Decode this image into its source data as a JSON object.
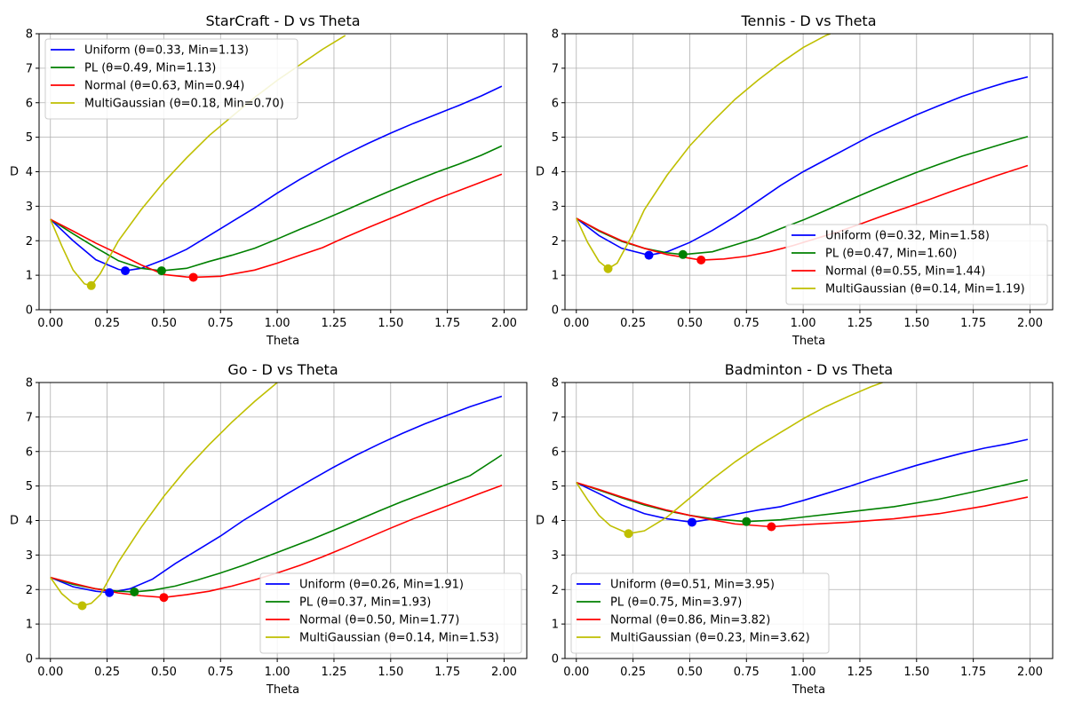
{
  "chart_data": [
    {
      "type": "line",
      "title": "StarCraft - D vs Theta",
      "xlabel": "Theta",
      "ylabel": "D",
      "xlim": [
        -0.05,
        2.1
      ],
      "ylim": [
        0,
        8
      ],
      "xticks": [
        "0.00",
        "0.25",
        "0.50",
        "0.75",
        "1.00",
        "1.25",
        "1.50",
        "1.75",
        "2.00"
      ],
      "yticks": [
        "0",
        "1",
        "2",
        "3",
        "4",
        "5",
        "6",
        "7",
        "8"
      ],
      "grid": true,
      "legend_position": "upper-left",
      "series": [
        {
          "name": "Uniform (θ=0.33, Min=1.13)",
          "color": "#0000ff",
          "x": [
            0,
            0.1,
            0.2,
            0.3,
            0.33,
            0.4,
            0.5,
            0.6,
            0.7,
            0.8,
            0.9,
            1.0,
            1.1,
            1.2,
            1.3,
            1.4,
            1.5,
            1.6,
            1.7,
            1.8,
            1.9,
            1.99
          ],
          "y": [
            2.62,
            2.0,
            1.45,
            1.17,
            1.13,
            1.2,
            1.45,
            1.75,
            2.15,
            2.55,
            2.95,
            3.38,
            3.78,
            4.15,
            4.5,
            4.82,
            5.12,
            5.4,
            5.66,
            5.92,
            6.2,
            6.48
          ],
          "min": {
            "x": 0.33,
            "y": 1.13
          }
        },
        {
          "name": "PL (θ=0.49, Min=1.13)",
          "color": "#008000",
          "x": [
            0,
            0.1,
            0.2,
            0.3,
            0.4,
            0.49,
            0.6,
            0.7,
            0.8,
            0.9,
            1.0,
            1.1,
            1.2,
            1.3,
            1.4,
            1.5,
            1.6,
            1.7,
            1.8,
            1.9,
            1.99
          ],
          "y": [
            2.62,
            2.2,
            1.8,
            1.42,
            1.2,
            1.13,
            1.2,
            1.4,
            1.58,
            1.78,
            2.05,
            2.33,
            2.6,
            2.88,
            3.17,
            3.45,
            3.72,
            3.98,
            4.22,
            4.48,
            4.75
          ],
          "min": {
            "x": 0.49,
            "y": 1.13
          }
        },
        {
          "name": "Normal (θ=0.63, Min=0.94)",
          "color": "#ff0000",
          "x": [
            0,
            0.1,
            0.2,
            0.3,
            0.4,
            0.5,
            0.6,
            0.63,
            0.75,
            0.9,
            1.0,
            1.1,
            1.2,
            1.3,
            1.4,
            1.5,
            1.6,
            1.7,
            1.8,
            1.9,
            1.99
          ],
          "y": [
            2.62,
            2.28,
            1.93,
            1.62,
            1.3,
            1.02,
            0.95,
            0.94,
            0.97,
            1.15,
            1.35,
            1.58,
            1.8,
            2.1,
            2.38,
            2.65,
            2.92,
            3.2,
            3.45,
            3.7,
            3.93
          ],
          "min": {
            "x": 0.63,
            "y": 0.94
          }
        },
        {
          "name": "MultiGaussian (θ=0.18, Min=0.70)",
          "color": "#bfbf00",
          "x": [
            0,
            0.05,
            0.1,
            0.15,
            0.18,
            0.22,
            0.3,
            0.4,
            0.5,
            0.6,
            0.7,
            0.8,
            0.9,
            1.0,
            1.1,
            1.2,
            1.3
          ],
          "y": [
            2.62,
            1.85,
            1.15,
            0.75,
            0.7,
            1.05,
            2.0,
            2.9,
            3.7,
            4.4,
            5.05,
            5.6,
            6.15,
            6.65,
            7.1,
            7.55,
            7.95
          ],
          "min": {
            "x": 0.18,
            "y": 0.7
          }
        }
      ]
    },
    {
      "type": "line",
      "title": "Tennis - D vs Theta",
      "xlabel": "Theta",
      "ylabel": "D",
      "xlim": [
        -0.05,
        2.1
      ],
      "ylim": [
        0,
        8
      ],
      "xticks": [
        "0.00",
        "0.25",
        "0.50",
        "0.75",
        "1.00",
        "1.25",
        "1.50",
        "1.75",
        "2.00"
      ],
      "yticks": [
        "0",
        "1",
        "2",
        "3",
        "4",
        "5",
        "6",
        "7",
        "8"
      ],
      "grid": true,
      "legend_position": "lower-right",
      "series": [
        {
          "name": "Uniform (θ=0.32, Min=1.58)",
          "color": "#0000ff",
          "x": [
            0,
            0.1,
            0.2,
            0.32,
            0.4,
            0.5,
            0.6,
            0.7,
            0.8,
            0.9,
            1.0,
            1.1,
            1.2,
            1.3,
            1.4,
            1.5,
            1.6,
            1.7,
            1.8,
            1.9,
            1.99
          ],
          "y": [
            2.65,
            2.15,
            1.78,
            1.58,
            1.68,
            1.95,
            2.3,
            2.7,
            3.15,
            3.6,
            4.0,
            4.35,
            4.7,
            5.05,
            5.35,
            5.65,
            5.92,
            6.18,
            6.4,
            6.6,
            6.75
          ],
          "min": {
            "x": 0.32,
            "y": 1.58
          }
        },
        {
          "name": "PL (θ=0.47, Min=1.60)",
          "color": "#008000",
          "x": [
            0,
            0.1,
            0.2,
            0.3,
            0.4,
            0.47,
            0.6,
            0.7,
            0.8,
            0.9,
            1.0,
            1.1,
            1.2,
            1.3,
            1.4,
            1.5,
            1.6,
            1.7,
            1.8,
            1.9,
            1.99
          ],
          "y": [
            2.65,
            2.28,
            1.98,
            1.78,
            1.65,
            1.6,
            1.68,
            1.88,
            2.08,
            2.35,
            2.6,
            2.88,
            3.17,
            3.45,
            3.72,
            3.98,
            4.22,
            4.45,
            4.65,
            4.85,
            5.02
          ],
          "min": {
            "x": 0.47,
            "y": 1.6
          }
        },
        {
          "name": "Normal (θ=0.55, Min=1.44)",
          "color": "#ff0000",
          "x": [
            0,
            0.1,
            0.2,
            0.3,
            0.4,
            0.55,
            0.65,
            0.75,
            0.85,
            0.95,
            1.05,
            1.15,
            1.25,
            1.35,
            1.45,
            1.55,
            1.65,
            1.75,
            1.85,
            1.99
          ],
          "y": [
            2.65,
            2.3,
            2.0,
            1.78,
            1.6,
            1.44,
            1.47,
            1.55,
            1.68,
            1.85,
            2.05,
            2.25,
            2.48,
            2.72,
            2.95,
            3.18,
            3.42,
            3.65,
            3.88,
            4.18
          ],
          "min": {
            "x": 0.55,
            "y": 1.44
          }
        },
        {
          "name": "MultiGaussian (θ=0.14, Min=1.19)",
          "color": "#bfbf00",
          "x": [
            0,
            0.05,
            0.1,
            0.14,
            0.18,
            0.25,
            0.3,
            0.4,
            0.5,
            0.6,
            0.7,
            0.8,
            0.9,
            1.0,
            1.1,
            1.12
          ],
          "y": [
            2.65,
            1.95,
            1.4,
            1.19,
            1.35,
            2.2,
            2.9,
            3.9,
            4.75,
            5.45,
            6.1,
            6.65,
            7.15,
            7.6,
            7.95,
            8.0
          ],
          "min": {
            "x": 0.14,
            "y": 1.19
          }
        }
      ]
    },
    {
      "type": "line",
      "title": "Go - D vs Theta",
      "xlabel": "Theta",
      "ylabel": "D",
      "xlim": [
        -0.05,
        2.1
      ],
      "ylim": [
        0,
        8
      ],
      "xticks": [
        "0.00",
        "0.25",
        "0.50",
        "0.75",
        "1.00",
        "1.25",
        "1.50",
        "1.75",
        "2.00"
      ],
      "yticks": [
        "0",
        "1",
        "2",
        "3",
        "4",
        "5",
        "6",
        "7",
        "8"
      ],
      "grid": true,
      "legend_position": "lower-right",
      "series": [
        {
          "name": "Uniform (θ=0.26, Min=1.91)",
          "color": "#0000ff",
          "x": [
            0,
            0.1,
            0.2,
            0.26,
            0.35,
            0.45,
            0.55,
            0.65,
            0.75,
            0.85,
            0.95,
            1.05,
            1.15,
            1.25,
            1.35,
            1.45,
            1.55,
            1.65,
            1.75,
            1.85,
            1.99
          ],
          "y": [
            2.35,
            2.08,
            1.95,
            1.91,
            2.02,
            2.3,
            2.75,
            3.15,
            3.55,
            4.0,
            4.4,
            4.8,
            5.18,
            5.55,
            5.9,
            6.22,
            6.52,
            6.8,
            7.05,
            7.3,
            7.6
          ],
          "min": {
            "x": 0.26,
            "y": 1.91
          }
        },
        {
          "name": "PL (θ=0.37, Min=1.93)",
          "color": "#008000",
          "x": [
            0,
            0.1,
            0.2,
            0.3,
            0.37,
            0.45,
            0.55,
            0.65,
            0.75,
            0.85,
            0.95,
            1.05,
            1.15,
            1.25,
            1.35,
            1.45,
            1.55,
            1.65,
            1.75,
            1.85,
            1.99
          ],
          "y": [
            2.35,
            2.15,
            2.02,
            1.95,
            1.93,
            1.98,
            2.1,
            2.28,
            2.48,
            2.7,
            2.95,
            3.2,
            3.45,
            3.72,
            4.0,
            4.28,
            4.55,
            4.8,
            5.05,
            5.3,
            5.9
          ],
          "min": {
            "x": 0.37,
            "y": 1.93
          }
        },
        {
          "name": "Normal (θ=0.50, Min=1.77)",
          "color": "#ff0000",
          "x": [
            0,
            0.1,
            0.2,
            0.3,
            0.4,
            0.5,
            0.6,
            0.7,
            0.8,
            0.9,
            1.0,
            1.1,
            1.2,
            1.3,
            1.4,
            1.5,
            1.6,
            1.7,
            1.8,
            1.9,
            1.99
          ],
          "y": [
            2.35,
            2.18,
            2.02,
            1.9,
            1.82,
            1.77,
            1.85,
            1.95,
            2.1,
            2.28,
            2.48,
            2.7,
            2.95,
            3.22,
            3.5,
            3.78,
            4.05,
            4.3,
            4.55,
            4.8,
            5.02
          ],
          "min": {
            "x": 0.5,
            "y": 1.77
          }
        },
        {
          "name": "MultiGaussian (θ=0.14, Min=1.53)",
          "color": "#bfbf00",
          "x": [
            0,
            0.05,
            0.1,
            0.14,
            0.18,
            0.22,
            0.3,
            0.4,
            0.5,
            0.6,
            0.7,
            0.8,
            0.9,
            1.0
          ],
          "y": [
            2.35,
            1.88,
            1.6,
            1.53,
            1.6,
            1.85,
            2.8,
            3.8,
            4.7,
            5.5,
            6.2,
            6.85,
            7.45,
            8.0
          ],
          "min": {
            "x": 0.14,
            "y": 1.53
          }
        }
      ]
    },
    {
      "type": "line",
      "title": "Badminton - D vs Theta",
      "xlabel": "Theta",
      "ylabel": "D",
      "xlim": [
        -0.05,
        2.1
      ],
      "ylim": [
        0,
        8
      ],
      "xticks": [
        "0.00",
        "0.25",
        "0.50",
        "0.75",
        "1.00",
        "1.25",
        "1.50",
        "1.75",
        "2.00"
      ],
      "yticks": [
        "0",
        "1",
        "2",
        "3",
        "4",
        "5",
        "6",
        "7",
        "8"
      ],
      "grid": true,
      "legend_position": "lower-left",
      "series": [
        {
          "name": "Uniform (θ=0.51, Min=3.95)",
          "color": "#0000ff",
          "x": [
            0,
            0.1,
            0.2,
            0.3,
            0.4,
            0.51,
            0.6,
            0.7,
            0.8,
            0.9,
            1.0,
            1.1,
            1.2,
            1.3,
            1.4,
            1.5,
            1.6,
            1.7,
            1.8,
            1.9,
            1.99
          ],
          "y": [
            5.1,
            4.78,
            4.45,
            4.2,
            4.05,
            3.95,
            4.05,
            4.18,
            4.3,
            4.4,
            4.58,
            4.78,
            4.98,
            5.2,
            5.4,
            5.6,
            5.78,
            5.95,
            6.1,
            6.22,
            6.35
          ],
          "min": {
            "x": 0.51,
            "y": 3.95
          }
        },
        {
          "name": "PL (θ=0.75, Min=3.97)",
          "color": "#008000",
          "x": [
            0,
            0.1,
            0.2,
            0.3,
            0.4,
            0.5,
            0.6,
            0.75,
            0.9,
            1.0,
            1.2,
            1.4,
            1.6,
            1.8,
            1.99
          ],
          "y": [
            5.1,
            4.88,
            4.66,
            4.45,
            4.28,
            4.15,
            4.05,
            3.97,
            4.02,
            4.1,
            4.25,
            4.4,
            4.62,
            4.9,
            5.18
          ],
          "min": {
            "x": 0.75,
            "y": 3.97
          }
        },
        {
          "name": "Normal (θ=0.86, Min=3.82)",
          "color": "#ff0000",
          "x": [
            0,
            0.1,
            0.2,
            0.3,
            0.4,
            0.5,
            0.6,
            0.7,
            0.86,
            1.0,
            1.2,
            1.4,
            1.6,
            1.8,
            1.99
          ],
          "y": [
            5.1,
            4.9,
            4.68,
            4.48,
            4.3,
            4.15,
            4.02,
            3.9,
            3.82,
            3.88,
            3.95,
            4.05,
            4.2,
            4.42,
            4.68
          ],
          "min": {
            "x": 0.86,
            "y": 3.82
          }
        },
        {
          "name": "MultiGaussian (θ=0.23, Min=3.62)",
          "color": "#bfbf00",
          "x": [
            0,
            0.05,
            0.1,
            0.15,
            0.23,
            0.3,
            0.4,
            0.5,
            0.6,
            0.7,
            0.8,
            0.9,
            1.0,
            1.1,
            1.2,
            1.3,
            1.35
          ],
          "y": [
            5.1,
            4.6,
            4.15,
            3.85,
            3.62,
            3.7,
            4.1,
            4.65,
            5.2,
            5.7,
            6.15,
            6.55,
            6.95,
            7.3,
            7.6,
            7.88,
            8.0
          ],
          "min": {
            "x": 0.23,
            "y": 3.62
          }
        }
      ]
    }
  ]
}
